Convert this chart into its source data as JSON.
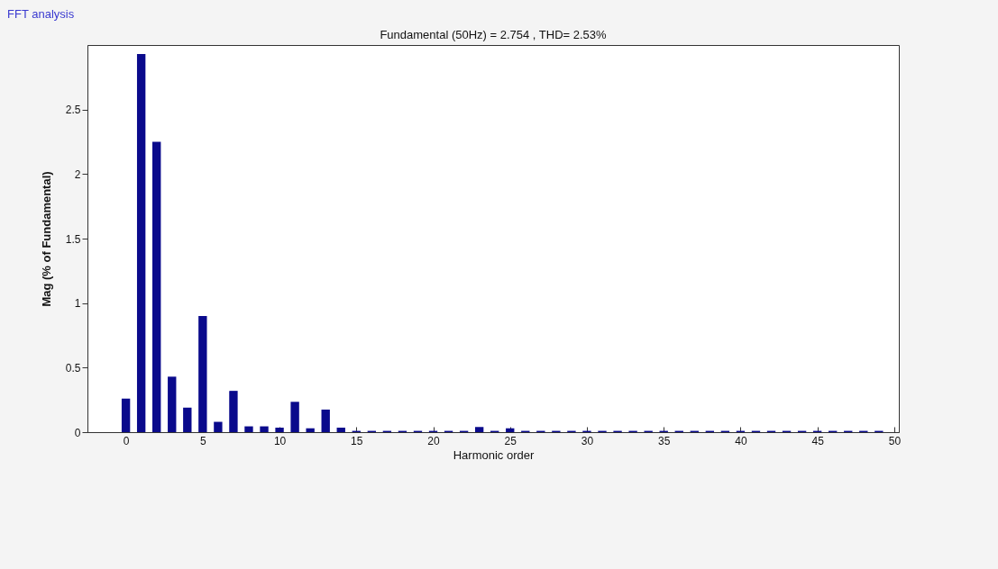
{
  "chart_data": {
    "type": "bar",
    "title": "Fundamental (50Hz) = 2.754 , THD= 2.53%",
    "xlabel": "Harmonic order",
    "ylabel": "Mag (% of Fundamental)",
    "annotations": [
      "FFT analysis"
    ],
    "x": [
      0,
      1,
      2,
      3,
      4,
      5,
      6,
      7,
      8,
      9,
      10,
      11,
      12,
      13,
      14,
      15,
      16,
      17,
      18,
      19,
      20,
      21,
      22,
      23,
      24,
      25,
      26,
      27,
      28,
      29,
      30,
      31,
      32,
      33,
      34,
      35,
      36,
      37,
      38,
      39,
      40,
      41,
      42,
      43,
      44,
      45,
      46,
      47,
      48,
      49
    ],
    "values": [
      0.26,
      2.93,
      2.25,
      0.43,
      0.19,
      0.9,
      0.08,
      0.32,
      0.045,
      0.045,
      0.035,
      0.235,
      0.03,
      0.175,
      0.035,
      0.01,
      0.01,
      0.01,
      0.01,
      0.01,
      0.01,
      0.01,
      0.01,
      0.04,
      0.01,
      0.03,
      0.01,
      0.01,
      0.01,
      0.01,
      0.01,
      0.01,
      0.01,
      0.01,
      0.01,
      0.01,
      0.01,
      0.01,
      0.01,
      0.01,
      0.01,
      0.01,
      0.01,
      0.01,
      0.01,
      0.01,
      0.01,
      0.01,
      0.01,
      0.01
    ],
    "color": "#0a0a8c",
    "xlim": [
      -2.5,
      50.3
    ],
    "ylim": [
      0,
      3
    ],
    "xticks": [
      0,
      5,
      10,
      15,
      20,
      25,
      30,
      35,
      40,
      45,
      50
    ],
    "yticks": [
      0,
      0.5,
      1,
      1.5,
      2,
      2.5
    ],
    "grid": false
  }
}
